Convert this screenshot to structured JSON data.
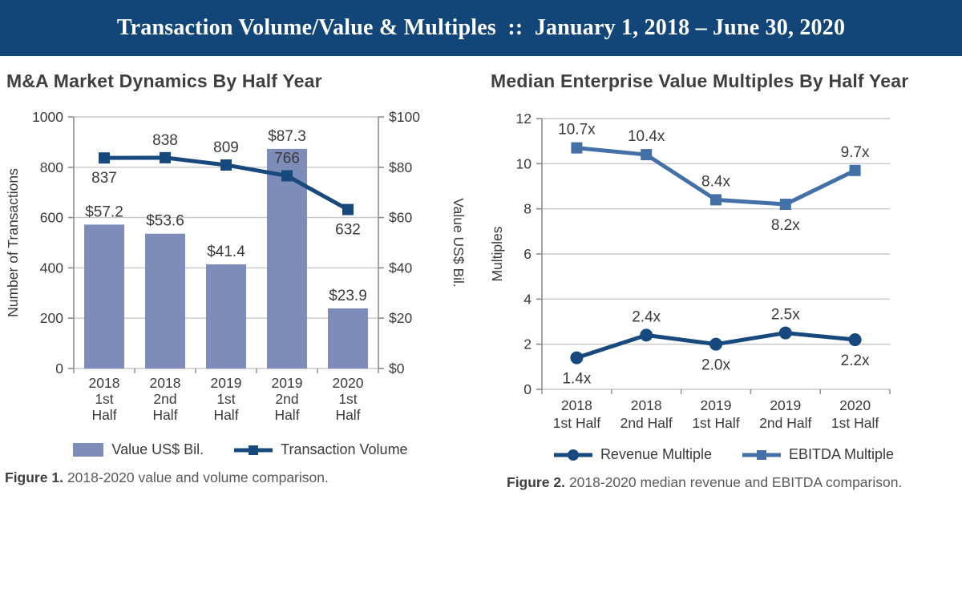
{
  "header": {
    "title": "Transaction Volume/Value & Multiples  ::  January 1, 2018 – June 30, 2020",
    "bg_color": "#124679",
    "text_color": "#FFFFFF"
  },
  "figures": [
    {
      "title": "M&A Market Dynamics By Half Year",
      "caption_label": "Figure 1.",
      "caption_text": "2018-2020 value and volume comparison."
    },
    {
      "title": "Median Enterprise Value Multiples By Half Year",
      "caption_label": "Figure 2.",
      "caption_text": "2018-2020 median revenue and EBITDA comparison."
    }
  ],
  "colors": {
    "bar_fill": "#7D8CB8",
    "navy_line": "#17497E",
    "ebitda_line": "#4470A8",
    "grid": "#C9C9C9",
    "axis": "#8C8C8C",
    "label_text": "#3A3A3A"
  },
  "chart_data": [
    {
      "type": "bar+line",
      "title": "M&A Market Dynamics By Half Year",
      "categories": [
        [
          "2018",
          "1st",
          "Half"
        ],
        [
          "2018",
          "2nd",
          "Half"
        ],
        [
          "2019",
          "1st",
          "Half"
        ],
        [
          "2019",
          "2nd",
          "Half"
        ],
        [
          "2020",
          "1st",
          "Half"
        ]
      ],
      "bar_series": {
        "name": "Value US$ Bil.",
        "axis": "right",
        "color": "#7D8CB8",
        "values": [
          57.2,
          53.6,
          41.4,
          87.3,
          23.9
        ],
        "labels": [
          "$57.2",
          "$53.6",
          "$41.4",
          "$87.3",
          "$23.9"
        ]
      },
      "line_series": {
        "name": "Transaction Volume",
        "axis": "left",
        "color": "#17497E",
        "marker": "square",
        "values": [
          837,
          838,
          809,
          766,
          632
        ],
        "labels": [
          "837",
          "838",
          "809",
          "766",
          "632"
        ],
        "label_pos": [
          "below",
          "above",
          "above",
          "above",
          "below"
        ]
      },
      "y_left": {
        "label": "Number of Transactions",
        "min": 0,
        "max": 1000,
        "step": 200
      },
      "y_right": {
        "label": "Value US$ Bil.",
        "min": 0,
        "max": 100,
        "step": 20,
        "prefix": "$"
      },
      "grid": true,
      "legend_position": "bottom"
    },
    {
      "type": "line",
      "title": "Median Enterprise Value Multiples By Half Year",
      "categories": [
        [
          "2018",
          "1st Half"
        ],
        [
          "2018",
          "2nd Half"
        ],
        [
          "2019",
          "1st Half"
        ],
        [
          "2019",
          "2nd Half"
        ],
        [
          "2020",
          "1st Half"
        ]
      ],
      "series": [
        {
          "name": "Revenue Multiple",
          "color": "#17497E",
          "marker": "circle",
          "values": [
            1.4,
            2.4,
            2.0,
            2.5,
            2.2
          ],
          "labels": [
            "1.4x",
            "2.4x",
            "2.0x",
            "2.5x",
            "2.2x"
          ],
          "label_pos": [
            "below",
            "above",
            "below",
            "above",
            "below"
          ]
        },
        {
          "name": "EBITDA Multiple",
          "color": "#4470A8",
          "marker": "square",
          "values": [
            10.7,
            10.4,
            8.4,
            8.2,
            9.7
          ],
          "labels": [
            "10.7x",
            "10.4x",
            "8.4x",
            "8.2x",
            "9.7x"
          ],
          "label_pos": [
            "above",
            "above",
            "above",
            "below",
            "above"
          ]
        }
      ],
      "y": {
        "label": "Multiples",
        "min": 0,
        "max": 12,
        "step": 2
      },
      "grid": true,
      "legend_position": "bottom"
    }
  ]
}
